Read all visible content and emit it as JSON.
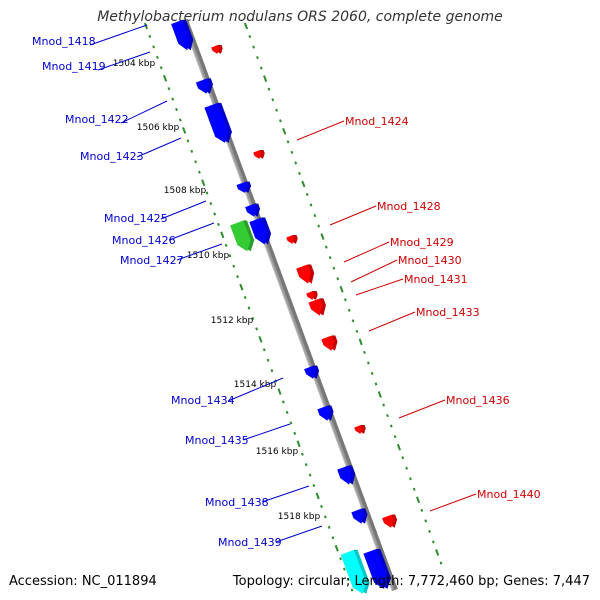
{
  "title": "Methylobacterium nodulans ORS 2060, complete genome",
  "accession": "Accession: NC_011894",
  "summary": "Topology: circular; Length: 7,772,460 bp; Genes: 7,447",
  "colors": {
    "backbone": "#999999",
    "minus_strand": "#0000ff",
    "plus_strand": "#ff0000",
    "rrna": "#33cc33",
    "trna": "#00ffff",
    "ticks": "#2e8b2e",
    "label_minus": "#0000cc",
    "label_plus": "#cc0000",
    "scale_label": "#000000"
  },
  "scale_labels": [
    "1504 kbp",
    "1506 kbp",
    "1508 kbp",
    "1510 kbp",
    "1512 kbp",
    "1514 kbp",
    "1516 kbp",
    "1518 kbp"
  ],
  "left_genes": [
    "Mnod_1418",
    "Mnod_1419",
    "Mnod_1422",
    "Mnod_1423",
    "Mnod_1425",
    "Mnod_1426",
    "Mnod_1427",
    "Mnod_1434",
    "Mnod_1435",
    "Mnod_1438",
    "Mnod_1439"
  ],
  "right_genes": [
    "Mnod_1424",
    "Mnod_1428",
    "Mnod_1429",
    "Mnod_1430",
    "Mnod_1431",
    "Mnod_1433",
    "Mnod_1436",
    "Mnod_1440"
  ]
}
